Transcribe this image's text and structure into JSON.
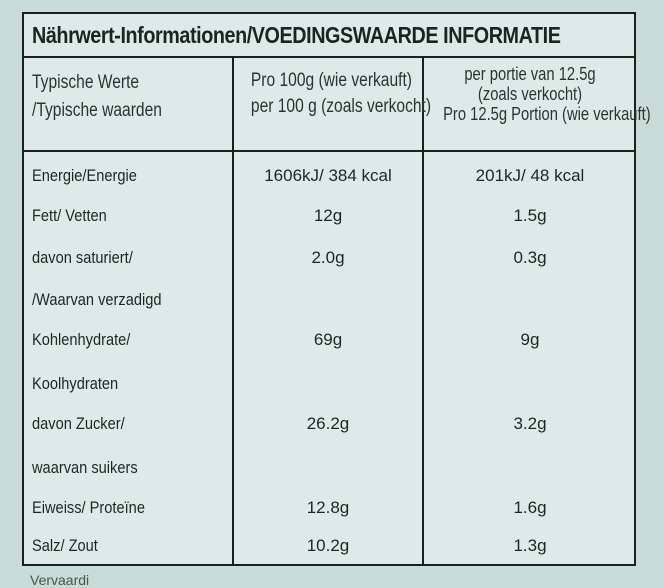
{
  "title": "Nährwert-Informationen/VOEDINGSWAARDE INFORMATIE",
  "header": {
    "col1_line1": "Typische Werte",
    "col1_line2": "/Typische waarden",
    "col2_line1": "Pro 100g (wie verkauft)",
    "col2_line2": "per 100 g (zoals verkocht)",
    "col3_line1": "per portie van 12.5g",
    "col3_line2": "(zoals verkocht)",
    "col3_line3": "Pro 12.5g Portion (wie verkauft)"
  },
  "rows": [
    {
      "label": "Energie/Energie",
      "per100": "1606kJ/ 384 kcal",
      "portion": "201kJ/ 48 kcal"
    },
    {
      "label": "Fett/ Vetten",
      "per100": "12g",
      "portion": "1.5g"
    },
    {
      "label": "davon saturiert/",
      "per100": "2.0g",
      "portion": "0.3g"
    },
    {
      "label": "/Waarvan verzadigd",
      "per100": "",
      "portion": ""
    },
    {
      "label": "Kohlenhydrate/",
      "per100": "69g",
      "portion": "9g"
    },
    {
      "label": "Koolhydraten",
      "per100": "",
      "portion": ""
    },
    {
      "label": "davon Zucker/",
      "per100": "26.2g",
      "portion": "3.2g"
    },
    {
      "label": "waarvan suikers",
      "per100": "",
      "portion": ""
    },
    {
      "label": "Eiweiss/ Proteïne",
      "per100": "12.8g",
      "portion": "1.6g"
    },
    {
      "label": "Salz/ Zout",
      "per100": "10.2g",
      "portion": "1.3g"
    }
  ],
  "footer": "Vervaardi"
}
